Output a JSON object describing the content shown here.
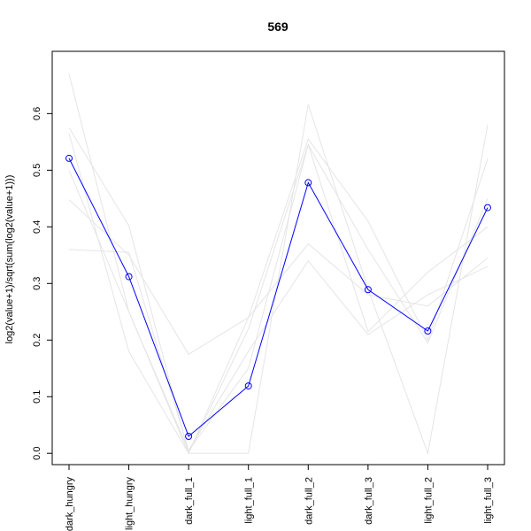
{
  "chart_data": {
    "type": "line",
    "title": "569",
    "xlabel": "",
    "ylabel": "log2(value+1)/sqrt(sum(log2(value+1)))",
    "categories": [
      "dark_hungry",
      "light_hungry",
      "dark_full_1",
      "light_full_1",
      "dark_full_2",
      "dark_full_3",
      "light_full_2",
      "light_full_3"
    ],
    "yticks": [
      "0.0",
      "0.1",
      "0.2",
      "0.3",
      "0.4",
      "0.5",
      "0.6"
    ],
    "ylim": [
      -0.02,
      0.71
    ],
    "grid": false,
    "highlight_color": "#0000ff",
    "background_color": "#e5e5e5",
    "series": [
      {
        "values": [
          0.521,
          0.312,
          0.03,
          0.119,
          0.478,
          0.289,
          0.216,
          0.434
        ],
        "highlight": true
      },
      {
        "values": [
          0.67,
          0.25,
          0.0,
          0.0,
          0.616,
          0.29,
          0.0,
          0.58
        ]
      },
      {
        "values": [
          0.575,
          0.402,
          0.0,
          0.24,
          0.555,
          0.41,
          0.2,
          0.52
        ]
      },
      {
        "values": [
          0.448,
          0.35,
          0.175,
          0.24,
          0.37,
          0.28,
          0.26,
          0.345
        ]
      },
      {
        "values": [
          0.36,
          0.355,
          0.005,
          0.18,
          0.34,
          0.21,
          0.28,
          0.33
        ]
      },
      {
        "values": [
          0.565,
          0.18,
          0.0,
          0.22,
          0.545,
          0.215,
          0.32,
          0.4
        ]
      },
      {
        "values": [
          0.5,
          0.25,
          0.005,
          0.15,
          0.545,
          0.36,
          0.195,
          0.45
        ]
      }
    ]
  }
}
